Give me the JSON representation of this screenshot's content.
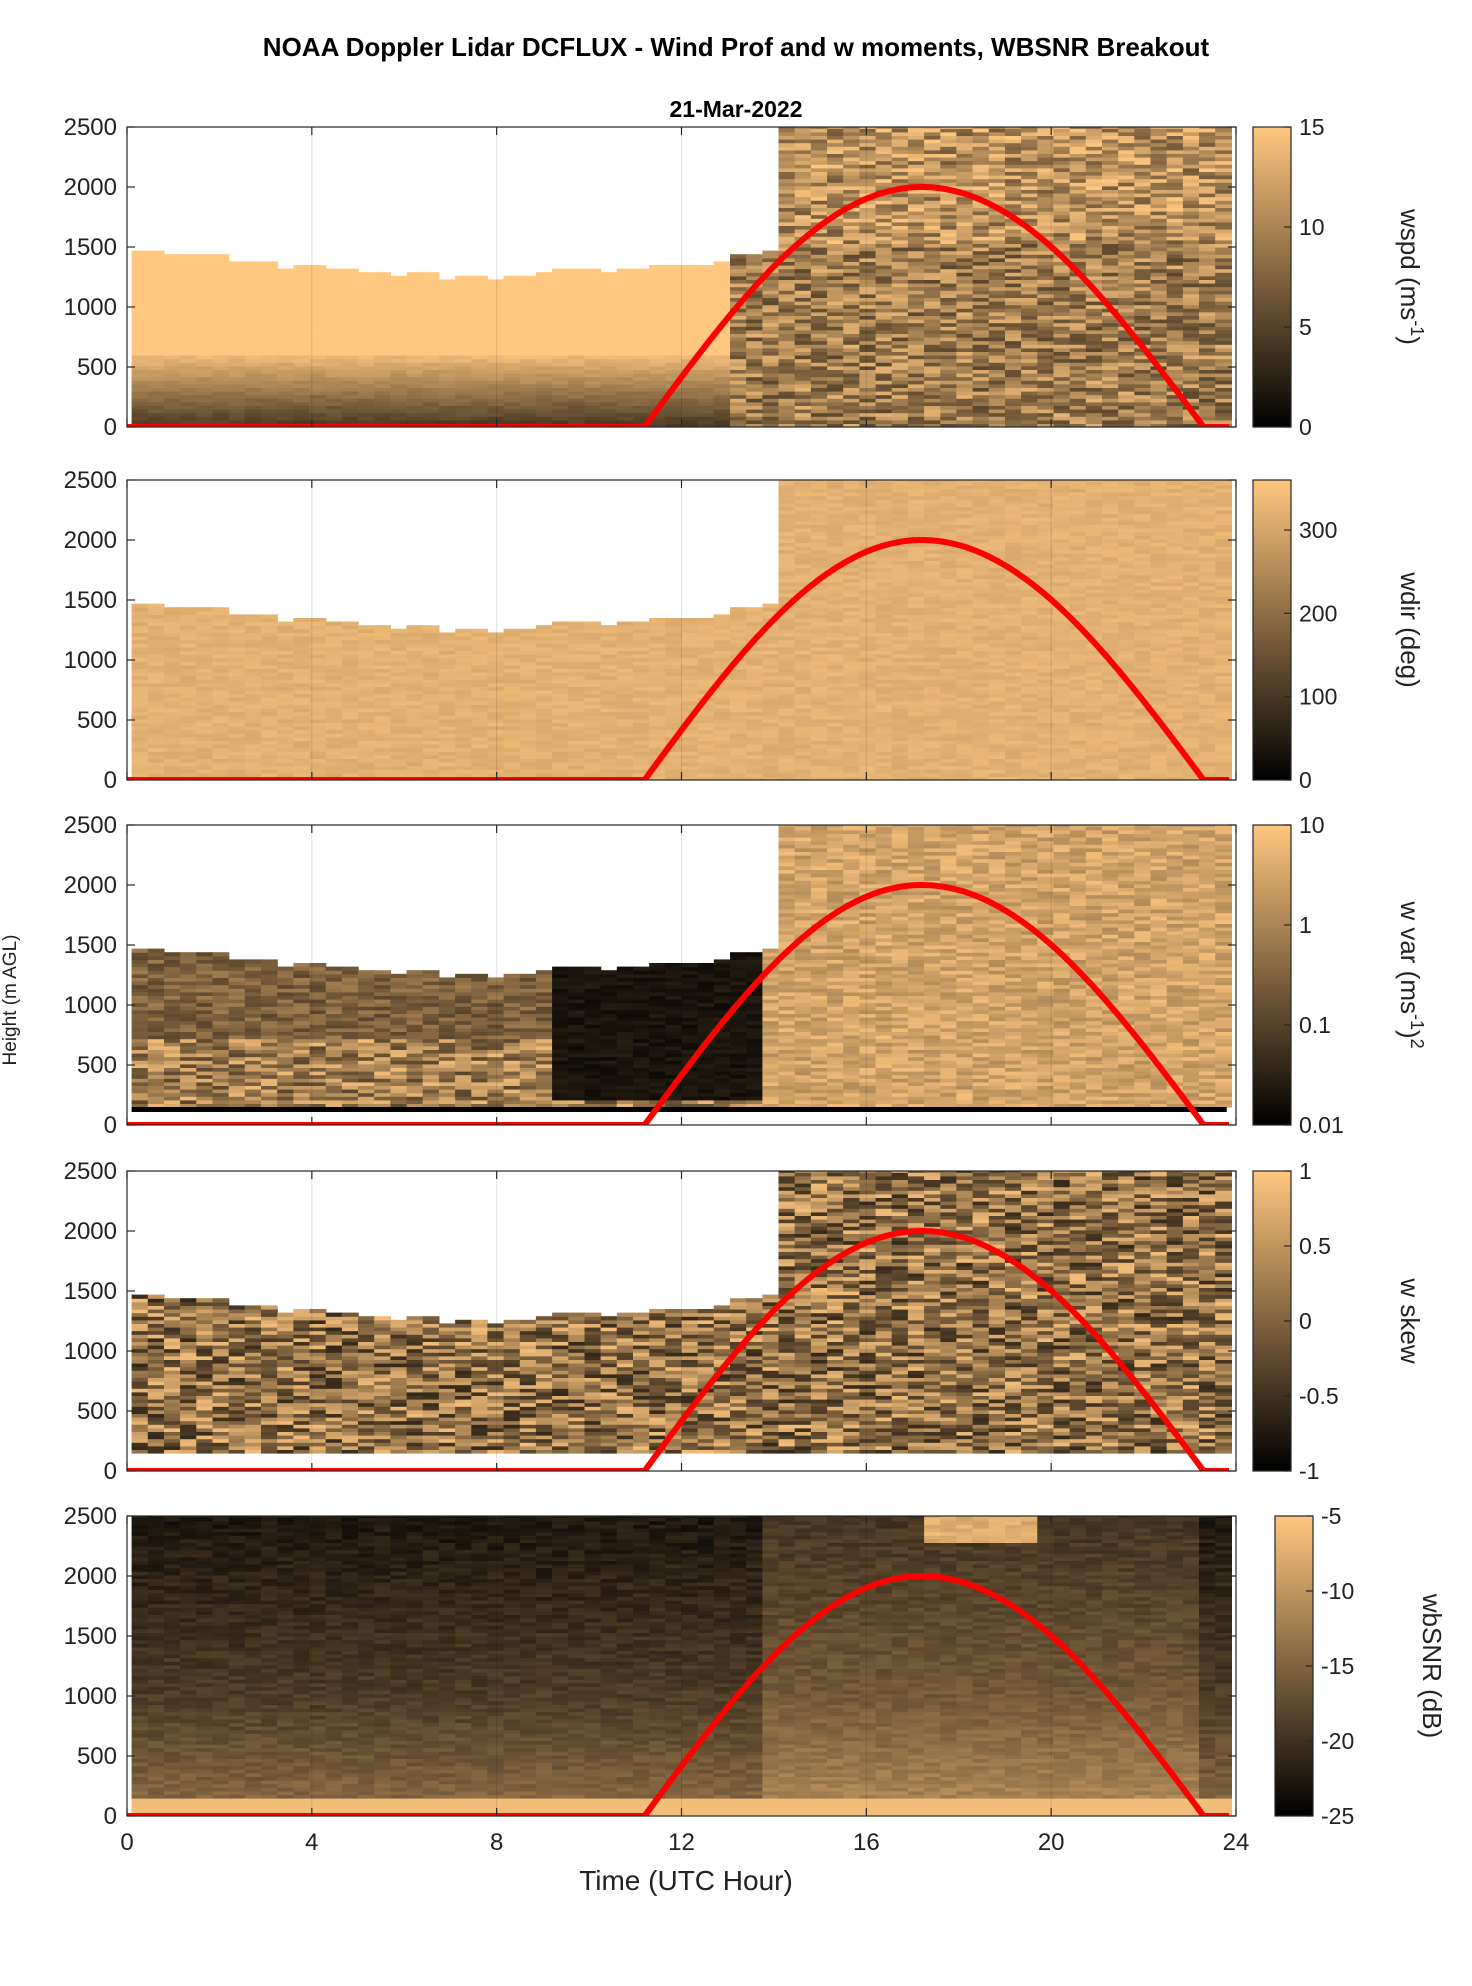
{
  "figure": {
    "title": "NOAA Doppler Lidar DCFLUX - Wind Prof and w moments, WBSNR Breakout",
    "date": "21-Mar-2022",
    "xlabel": "Time (UTC Hour)",
    "ylabel": "Height (m AGL)"
  },
  "chart_data": {
    "type": "heatmap",
    "x_range": [
      0,
      24
    ],
    "x_ticks": [
      0,
      4,
      8,
      12,
      16,
      20,
      24
    ],
    "y_range": [
      0,
      2500
    ],
    "y_ticks": [
      0,
      500,
      1000,
      1500,
      2000,
      2500
    ],
    "grid": "vertical",
    "colormap": "copper",
    "colormap_colors": [
      "#000000",
      "#ffc77f"
    ],
    "sun_curve": {
      "color": "#ff0000",
      "rise_hour": 11.2,
      "peak_hour": 17.2,
      "set_hour": 23.3,
      "peak_height": 2000
    },
    "panels": [
      {
        "name": "wspd",
        "colorbar_label": "wspd (ms",
        "colorbar_label_sup": "-1",
        "colorbar_label_end": ")",
        "clim": [
          0,
          15
        ],
        "cticks": [
          "15",
          "10",
          "5",
          "0"
        ],
        "cticks_values": [
          15,
          10,
          5,
          0
        ],
        "scale": "linear"
      },
      {
        "name": "wdir",
        "colorbar_label": "wdir (deg)",
        "colorbar_label_sup": "",
        "colorbar_label_end": "",
        "clim": [
          0,
          360
        ],
        "cticks": [
          "300",
          "200",
          "100",
          "0"
        ],
        "cticks_values": [
          300,
          200,
          100,
          0
        ],
        "scale": "linear"
      },
      {
        "name": "w var",
        "colorbar_label": "w var (ms",
        "colorbar_label_sup": "-1",
        "colorbar_label_end": ")",
        "colorbar_label_sup2": "2",
        "clim": [
          0.01,
          10
        ],
        "cticks": [
          "10",
          "1",
          "0.1",
          "0.01"
        ],
        "cticks_values": [
          10,
          1,
          0.1,
          0.01
        ],
        "scale": "log"
      },
      {
        "name": "w skew",
        "colorbar_label": "w skew",
        "colorbar_label_sup": "",
        "colorbar_label_end": "",
        "clim": [
          -1,
          1
        ],
        "cticks": [
          "1",
          "0.5",
          "0",
          "-0.5",
          "-1"
        ],
        "cticks_values": [
          1,
          0.5,
          0,
          -0.5,
          -1
        ],
        "scale": "linear"
      },
      {
        "name": "wbSNR",
        "colorbar_label": "wbSNR (dB)",
        "colorbar_label_sup": "",
        "colorbar_label_end": "",
        "clim": [
          -25,
          -5
        ],
        "cticks": [
          "-5",
          "-10",
          "-15",
          "-20",
          "-25"
        ],
        "cticks_values": [
          -5,
          -10,
          -15,
          -20,
          -25
        ],
        "scale": "linear"
      }
    ]
  }
}
